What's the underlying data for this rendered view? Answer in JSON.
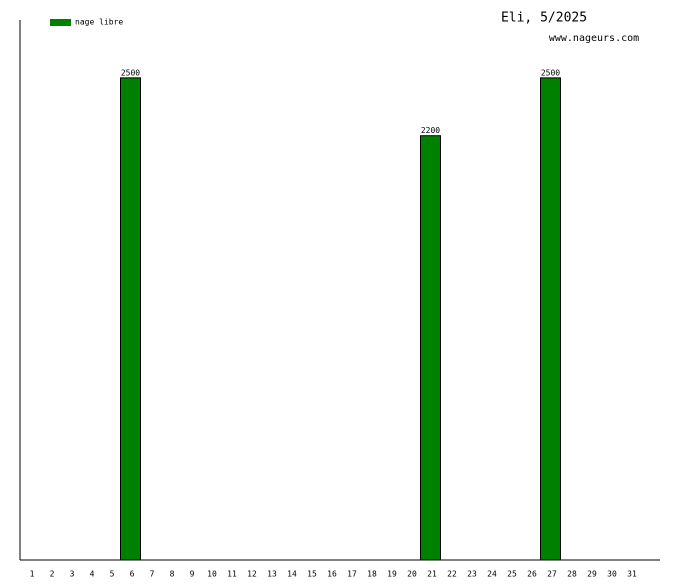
{
  "chart_data": {
    "type": "bar",
    "title": "Eli, 5/2025",
    "subtitle": "www.nageurs.com",
    "categories": [
      "1",
      "2",
      "3",
      "4",
      "5",
      "6",
      "7",
      "8",
      "9",
      "10",
      "11",
      "12",
      "13",
      "14",
      "15",
      "16",
      "17",
      "18",
      "19",
      "20",
      "21",
      "22",
      "23",
      "24",
      "25",
      "26",
      "27",
      "28",
      "29",
      "30",
      "31"
    ],
    "series": [
      {
        "name": "nage libre",
        "color": "#008000",
        "values": [
          null,
          null,
          null,
          null,
          null,
          2500,
          null,
          null,
          null,
          null,
          null,
          null,
          null,
          null,
          null,
          null,
          null,
          null,
          null,
          null,
          2200,
          null,
          null,
          null,
          null,
          null,
          2500,
          null,
          null,
          null,
          null
        ]
      }
    ],
    "ylim": [
      0,
      2800
    ],
    "grid": false,
    "legend": "top-left"
  }
}
